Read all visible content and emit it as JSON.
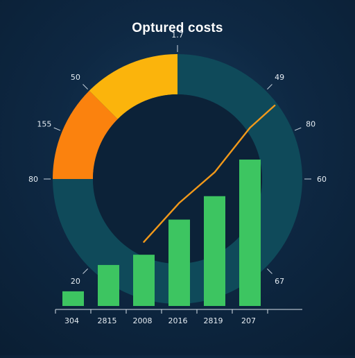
{
  "colors": {
    "background": "#0e2843",
    "ring_track": "#0f4a5a",
    "slice_yellow": "#fbb40c",
    "slice_orange": "#fb820e",
    "bars": "#3dc561",
    "line": "#f2991a",
    "text": "#e6edf3"
  },
  "chart_data": {
    "title": "Optured costs",
    "type": "bar",
    "subtitle_tick": "1.7",
    "ring": {
      "type": "pie",
      "slices": [
        {
          "value": 0.125,
          "color": "#fbb40c"
        },
        {
          "value": 0.125,
          "color": "#fb820e"
        },
        {
          "value": 0.75,
          "color": "#0f4a5a"
        }
      ],
      "labels": [
        {
          "text": "1.7",
          "angle": 0
        },
        {
          "text": "49",
          "angle": 45
        },
        {
          "text": "80",
          "angle": 67.5
        },
        {
          "text": "60",
          "angle": 90
        },
        {
          "text": "67",
          "angle": 135
        },
        {
          "text": "20",
          "angle": 225
        },
        {
          "text": "80",
          "angle": 270
        },
        {
          "text": "155",
          "angle": 292.5
        },
        {
          "text": "50",
          "angle": 315
        }
      ]
    },
    "categories": [
      "304",
      "2815",
      "2008",
      "2016",
      "2819",
      "207"
    ],
    "values": [
      10,
      28,
      35,
      59,
      75,
      100
    ],
    "ylim": [
      0,
      100
    ],
    "line": [
      {
        "x": 2,
        "y": 46
      },
      {
        "x": 3,
        "y": 74
      },
      {
        "x": 4,
        "y": 96
      },
      {
        "x": 5,
        "y": 128
      },
      {
        "x": 5.7,
        "y": 144
      }
    ]
  }
}
